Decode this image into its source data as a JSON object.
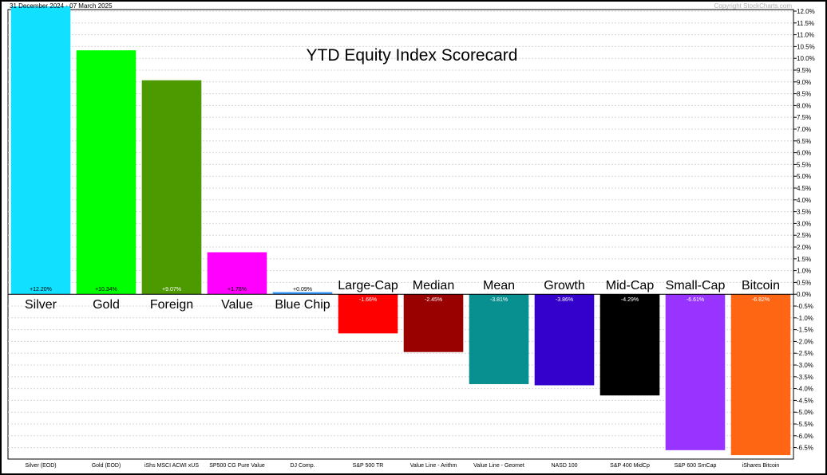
{
  "chart_data": {
    "type": "bar",
    "date_range": "31 December 2024 - 07 March 2025",
    "watermark": "Copyright StockCharts.com",
    "title": "YTD Equity Index Scorecard",
    "ylim": [
      -6.8,
      12.0
    ],
    "y_ticks": [
      12.0,
      11.5,
      11.0,
      10.5,
      10.0,
      9.5,
      9.0,
      8.5,
      8.0,
      7.5,
      7.0,
      6.5,
      6.0,
      5.5,
      5.0,
      4.5,
      4.0,
      3.5,
      3.0,
      2.5,
      2.0,
      1.5,
      1.0,
      0.5,
      0.0,
      -0.5,
      -1.0,
      -1.5,
      -2.0,
      -2.5,
      -3.0,
      -3.5,
      -4.0,
      -4.5,
      -5.0,
      -5.5,
      -6.0,
      -6.5
    ],
    "y_tick_labels": [
      "12.0%",
      "11.5%",
      "11.0%",
      "10.5%",
      "10.0%",
      "9.5%",
      "9.0%",
      "8.5%",
      "8.0%",
      "7.5%",
      "7.0%",
      "6.5%",
      "6.0%",
      "5.5%",
      "5.0%",
      "4.5%",
      "4.0%",
      "3.5%",
      "3.0%",
      "2.5%",
      "2.0%",
      "1.5%",
      "1.0%",
      "0.5%",
      "0.0%",
      "-0.5%",
      "-1.0%",
      "-1.5%",
      "-2.0%",
      "-2.5%",
      "-3.0%",
      "-3.5%",
      "-4.0%",
      "-4.5%",
      "-5.0%",
      "-5.5%",
      "-6.0%",
      "-6.5%"
    ],
    "categories": [
      "Silver (EOD)",
      "Gold (EOD)",
      "iShs MSCI ACWI xUS",
      "SP500 CG Pure Value",
      "DJ Comp.",
      "S&P 500 TR",
      "Value Line - Arithm",
      "Value Line - Geomet",
      "NASD 100",
      "S&P 400 MidCp",
      "S&P 600 SmCap",
      "iShares Bitcoin"
    ],
    "values": [
      12.2,
      10.34,
      9.07,
      1.78,
      0.09,
      -1.66,
      -2.45,
      -3.81,
      -3.86,
      -4.29,
      -6.61,
      -6.82
    ],
    "value_labels": [
      "+12.20%",
      "+10.34%",
      "+9.07%",
      "+1.78%",
      "+0.09%",
      "-1.66%",
      "-2.45%",
      "-3.81%",
      "-3.86%",
      "-4.29%",
      "-6.61%",
      "-6.82%"
    ],
    "bar_names": [
      "Silver",
      "Gold",
      "Foreign",
      "Value",
      "Blue Chip",
      "Large-Cap",
      "Median",
      "Mean",
      "Growth",
      "Mid-Cap",
      "Small-Cap",
      "Bitcoin"
    ],
    "colors": [
      "#11E0FF",
      "#00FF00",
      "#4C9900",
      "#FF00FF",
      "#3399FF",
      "#FF0000",
      "#990000",
      "#088F8F",
      "#3300CC",
      "#000000",
      "#9933FF",
      "#FF6614"
    ],
    "value_label_colors": [
      "#000000",
      "#000000",
      "#ffffff",
      "#000000",
      "#000000",
      "#ffffff",
      "#ffffff",
      "#ffffff",
      "#ffffff",
      "#ffffff",
      "#ffffff",
      "#ffffff"
    ]
  }
}
